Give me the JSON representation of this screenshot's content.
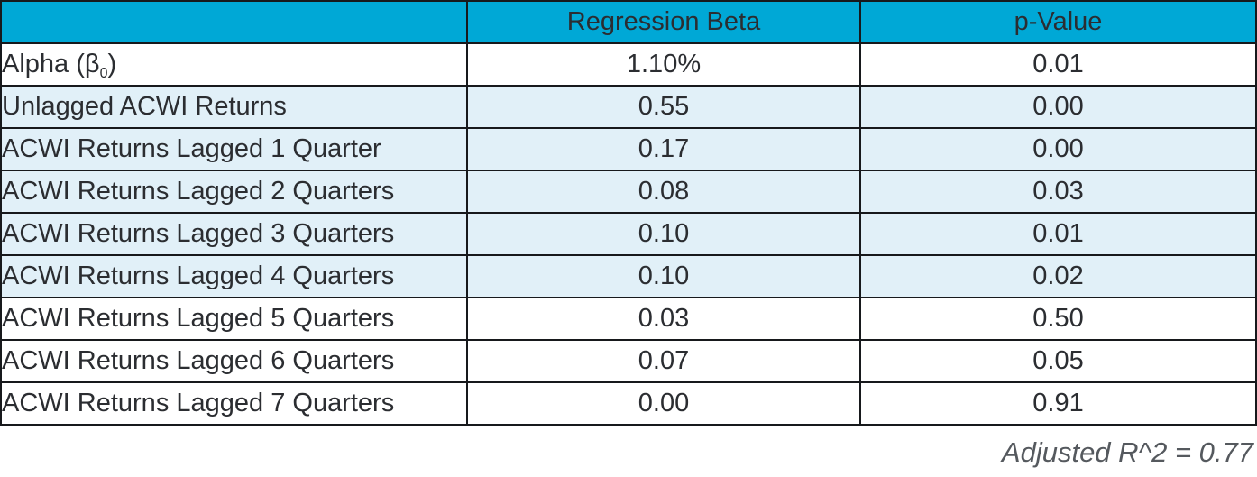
{
  "colors": {
    "header_bg": "#00a8d6",
    "header_text": "#ffffff",
    "highlight_row_bg": "#e1f0f8",
    "default_row_bg": "#ffffff",
    "border": "#17191c",
    "body_text": "#2b2d31",
    "footer_text": "#55595e"
  },
  "table": {
    "columns": [
      "",
      "Regression Beta",
      "p-Value"
    ],
    "rows": [
      {
        "label": [
          {
            "text": "Alpha (β"
          },
          {
            "text": "0",
            "subscript": true
          },
          {
            "text": ")"
          }
        ],
        "regression_beta": "1.10%",
        "p_value": "0.01",
        "highlighted": false
      },
      {
        "label": [
          {
            "text": "Unlagged ACWI Returns"
          }
        ],
        "regression_beta": "0.55",
        "p_value": "0.00",
        "highlighted": true
      },
      {
        "label": [
          {
            "text": "ACWI Returns Lagged 1 Quarter"
          }
        ],
        "regression_beta": "0.17",
        "p_value": "0.00",
        "highlighted": true
      },
      {
        "label": [
          {
            "text": "ACWI Returns Lagged 2 Quarters"
          }
        ],
        "regression_beta": "0.08",
        "p_value": "0.03",
        "highlighted": true
      },
      {
        "label": [
          {
            "text": "ACWI Returns Lagged 3 Quarters"
          }
        ],
        "regression_beta": "0.10",
        "p_value": "0.01",
        "highlighted": true
      },
      {
        "label": [
          {
            "text": "ACWI Returns Lagged 4 Quarters"
          }
        ],
        "regression_beta": "0.10",
        "p_value": "0.02",
        "highlighted": true
      },
      {
        "label": [
          {
            "text": "ACWI Returns Lagged 5 Quarters"
          }
        ],
        "regression_beta": "0.03",
        "p_value": "0.50",
        "highlighted": false
      },
      {
        "label": [
          {
            "text": "ACWI Returns Lagged 6 Quarters"
          }
        ],
        "regression_beta": "0.07",
        "p_value": "0.05",
        "highlighted": false
      },
      {
        "label": [
          {
            "text": "ACWI Returns Lagged 7 Quarters"
          }
        ],
        "regression_beta": "0.00",
        "p_value": "0.91",
        "highlighted": false
      }
    ]
  },
  "footer": {
    "note": "Adjusted R^2 = 0.77"
  },
  "chart_data": {
    "type": "table",
    "columns": [
      "",
      "Regression Beta",
      "p-Value"
    ],
    "rows": [
      [
        "Alpha (β0)",
        "1.10%",
        "0.01"
      ],
      [
        "Unlagged ACWI Returns",
        "0.55",
        "0.00"
      ],
      [
        "ACWI Returns Lagged 1 Quarter",
        "0.17",
        "0.00"
      ],
      [
        "ACWI Returns Lagged 2 Quarters",
        "0.08",
        "0.03"
      ],
      [
        "ACWI Returns Lagged 3 Quarters",
        "0.10",
        "0.01"
      ],
      [
        "ACWI Returns Lagged 4 Quarters",
        "0.10",
        "0.02"
      ],
      [
        "ACWI Returns Lagged 5 Quarters",
        "0.03",
        "0.50"
      ],
      [
        "ACWI Returns Lagged 6 Quarters",
        "0.07",
        "0.05"
      ],
      [
        "ACWI Returns Lagged 7 Quarters",
        "0.00",
        "0.91"
      ]
    ],
    "highlighted_rows": [
      1,
      2,
      3,
      4,
      5
    ],
    "note": "Adjusted R^2 = 0.77"
  }
}
